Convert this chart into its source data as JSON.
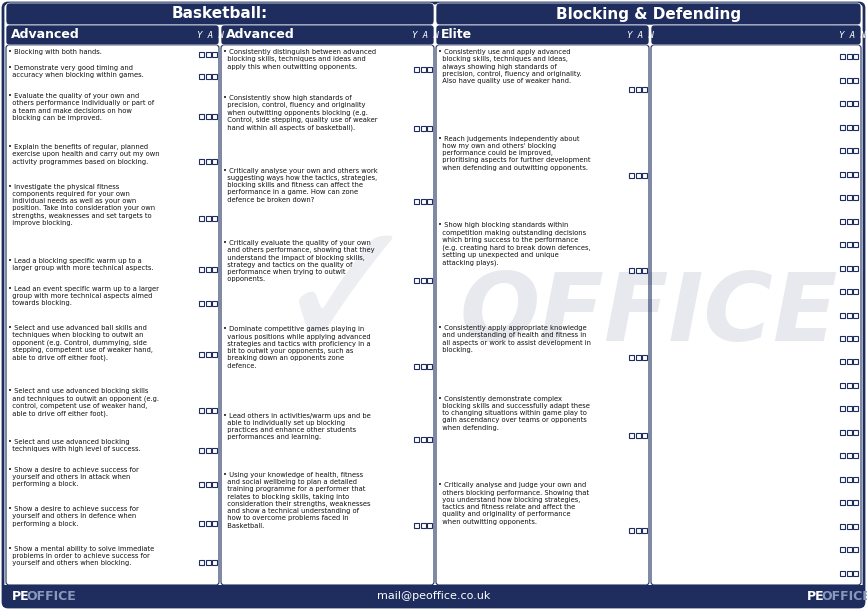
{
  "title_left": "Basketball:",
  "title_right": "Blocking & Defending",
  "col1_header": "Advanced",
  "col2_header": "Advanced",
  "col3_header": "Elite",
  "col4_header": "",
  "yan_label": "Y A N",
  "header_bg": "#1e2d5e",
  "header_text_color": "#ffffff",
  "body_bg": "#ffffff",
  "border_color": "#1e2d5e",
  "footer_text": "mail@peoffice.co.uk",
  "col1_items": [
    "• Blocking with both hands.",
    "• Demonstrate very good timing and\n  accuracy when blocking within games.",
    "• Evaluate the quality of your own and\n  others performance individually or part of\n  a team and make decisions on how\n  blocking can be improved.",
    "• Explain the benefits of regular, planned\n  exercise upon health and carry out my own\n  activity programmes based on blocking.",
    "• Investigate the physical fitness\n  components required for your own\n  individual needs as well as your own\n  position. Take into consideration your own\n  strengths, weaknesses and set targets to\n  improve blocking.",
    "• Lead a blocking specific warm up to a\n  larger group with more technical aspects.",
    "• Lead an event specific warm up to a larger\n  group with more technical aspects aimed\n  towards blocking.",
    "• Select and use advanced ball skills and\n  techniques when blocking to outwit an\n  opponent (e.g. Control, dummying, side\n  stepping, competent use of weaker hand,\n  able to drive off either foot).",
    "• Select and use advanced blocking skills\n  and techniques to outwit an opponent (e.g.\n  control, competent use of weaker hand,\n  able to drive off either foot).",
    "• Select and use advanced blocking\n  techniques with high level of success.",
    "• Show a desire to achieve success for\n  yourself and others in attack when\n  performing a block.",
    "• Show a desire to achieve success for\n  yourself and others in defence when\n  performing a block.",
    "• Show a mental ability to solve immediate\n  problems in order to achieve success for\n  yourself and others when blocking."
  ],
  "col2_items": [
    "• Consistently distinguish between advanced\n  blocking skills, techniques and ideas and\n  apply this when outwitting opponents.",
    "• Consistently show high standards of\n  precision, control, fluency and originality\n  when outwitting opponents blocking (e.g.\n  Control, side stepping, quality use of weaker\n  hand within all aspects of basketball).",
    "• Critically analyse your own and others work\n  suggesting ways how the tactics, strategies,\n  blocking skills and fitness can affect the\n  performance in a game. How can zone\n  defence be broken down?",
    "• Critically evaluate the quality of your own\n  and others performance, showing that they\n  understand the impact of blocking skills,\n  strategy and tactics on the quality of\n  performance when trying to outwit\n  opponents.",
    "• Dominate competitive games playing in\n  various positions while applying advanced\n  strategies and tactics with proficiency in a\n  bit to outwit your opponents, such as\n  breaking down an opponents zone\n  defence.",
    "• Lead others in activities/warm ups and be\n  able to individually set up blocking\n  practices and enhance other students\n  performances and learning.",
    "• Using your knowledge of health, fitness\n  and social wellbeing to plan a detailed\n  training programme for a performer that\n  relates to blocking skills, taking into\n  consideration their strengths, weaknesses\n  and show a technical understanding of\n  how to overcome problems faced in\n  Basketball."
  ],
  "col3_items": [
    "• Consistently use and apply advanced\n  blocking skills, techniques and ideas,\n  always showing high standards of\n  precision, control, fluency and originality.\n  Also have quality use of weaker hand.",
    "• Reach judgements independently about\n  how my own and others' blocking\n  performance could be improved,\n  prioritising aspects for further development\n  when defending and outwitting opponents.",
    "• Show high blocking standards within\n  competition making outstanding decisions\n  which bring success to the performance\n  (e.g. creating hard to break down defences,\n  setting up unexpected and unique\n  attacking plays).",
    "• Consistently apply appropriate knowledge\n  and understanding of health and fitness in\n  all aspects or work to assist development in\n  blocking.",
    "• Consistently demonstrate complex\n  blocking skills and successfully adapt these\n  to changing situations within game play to\n  gain ascendancy over teams or opponents\n  when defending.",
    "• Critically analyse and judge your own and\n  others blocking performance. Showing that\n  you understand how blocking strategies,\n  tactics and fitness relate and affect the\n  quality and originality of performance\n  when outwitting opponents."
  ],
  "col4_rows": 23,
  "watermark_text": "OFFICE",
  "fig_width": 8.67,
  "fig_height": 6.1
}
